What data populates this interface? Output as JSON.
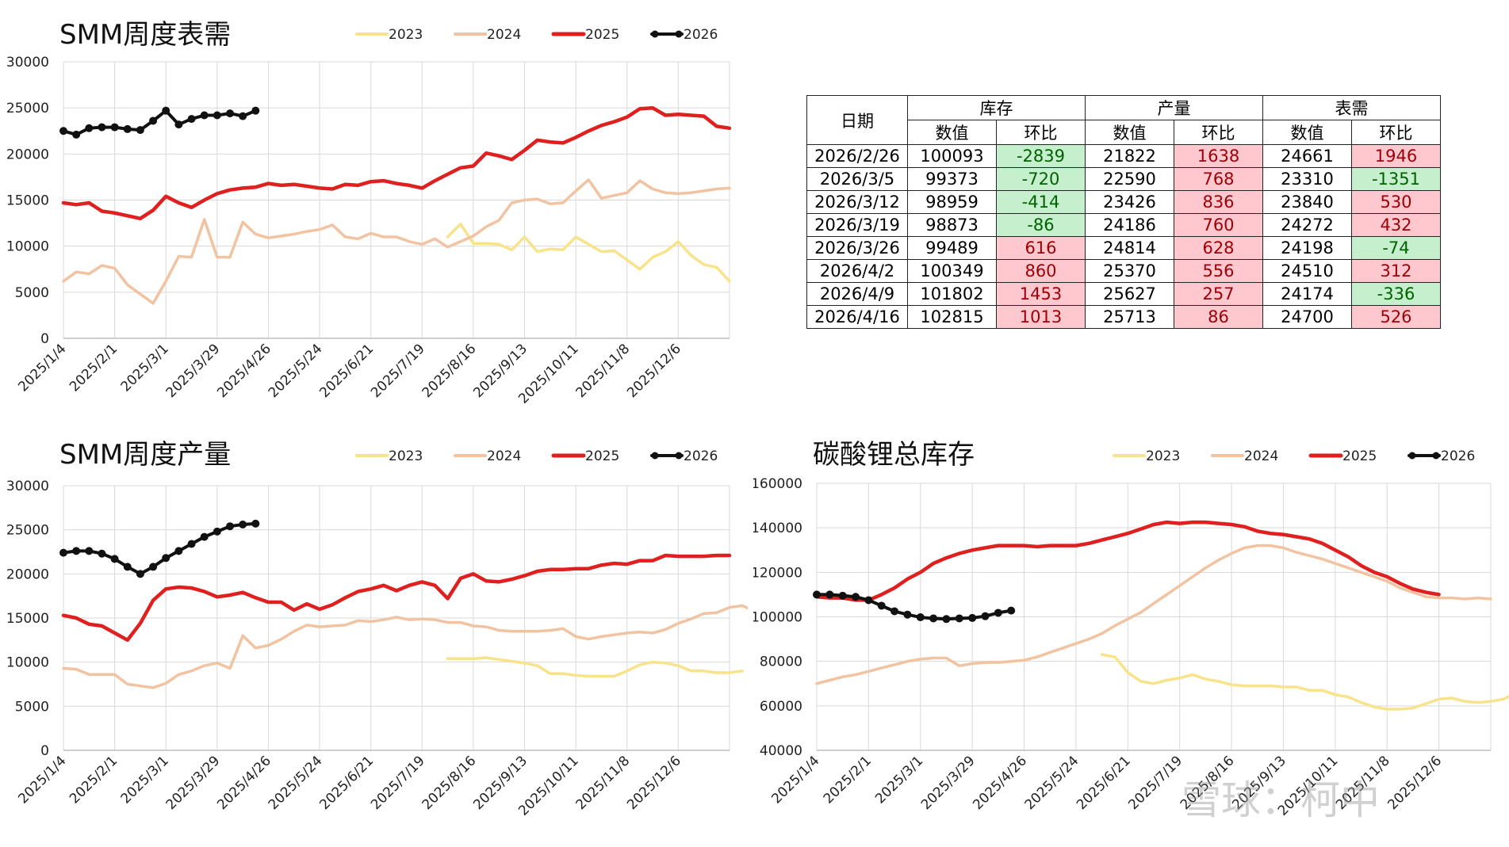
{
  "colors": {
    "s2023": "#f9e38a",
    "s2024": "#f2c3a0",
    "s2025": "#e01f1f",
    "s2026": "#111111",
    "grid": "#d9d9d9",
    "pos": "#ffc7ce",
    "neg": "#c6efce"
  },
  "chart_data": [
    {
      "type": "line",
      "title": "SMM周度表需",
      "ylim": [
        0,
        30000
      ],
      "yticks": [
        0,
        5000,
        10000,
        15000,
        20000,
        25000,
        30000
      ],
      "xticks": [
        "2025/1/4",
        "2025/2/1",
        "2025/3/1",
        "2025/3/29",
        "2025/4/26",
        "2025/5/24",
        "2025/6/21",
        "2025/7/19",
        "2025/8/16",
        "2025/9/13",
        "2025/10/11",
        "2025/11/8",
        "2025/12/6"
      ],
      "series": [
        {
          "name": "2023",
          "start": 30,
          "values": [
            11000,
            12400,
            10300,
            10300,
            10200,
            9600,
            11000,
            9400,
            9700,
            9600,
            11000,
            10200,
            9400,
            9500,
            8500,
            7500,
            8800,
            9400,
            10500,
            9000,
            8000,
            7700,
            6200
          ]
        },
        {
          "name": "2024",
          "start": 0,
          "values": [
            6200,
            7200,
            7000,
            7900,
            7600,
            5800,
            4800,
            3800,
            6200,
            8900,
            8800,
            12900,
            8800,
            8800,
            12600,
            11300,
            10900,
            11100,
            11300,
            11600,
            11800,
            12300,
            11000,
            10800,
            11400,
            11000,
            11000,
            10500,
            10200,
            10800,
            9900,
            10500,
            11100,
            12100,
            12800,
            14700,
            15000,
            15100,
            14600,
            14700,
            16000,
            17200,
            15200,
            15500,
            15800,
            17100,
            16200,
            15800,
            15700,
            15800,
            16000,
            16200,
            16300
          ]
        },
        {
          "name": "2025",
          "start": 0,
          "values": [
            14700,
            14500,
            14700,
            13800,
            13600,
            13300,
            13000,
            13900,
            15400,
            14700,
            14200,
            15000,
            15700,
            16100,
            16300,
            16400,
            16800,
            16600,
            16700,
            16500,
            16300,
            16200,
            16700,
            16600,
            17000,
            17100,
            16800,
            16600,
            16300,
            17100,
            17800,
            18500,
            18700,
            20100,
            19800,
            19400,
            20400,
            21500,
            21300,
            21200,
            21800,
            22500,
            23100,
            23500,
            24000,
            24900,
            25000,
            24200,
            24300,
            24200,
            24100,
            23000,
            22800
          ]
        },
        {
          "name": "2026",
          "start": 0,
          "values": [
            22500,
            22100,
            22800,
            22900,
            22900,
            22700,
            22600,
            23600,
            24700,
            23200,
            23800,
            24200,
            24200,
            24400,
            24100,
            24700
          ]
        }
      ]
    },
    {
      "type": "line",
      "title": "SMM周度产量",
      "ylim": [
        0,
        30000
      ],
      "yticks": [
        0,
        5000,
        10000,
        15000,
        20000,
        25000,
        30000
      ],
      "xticks": [
        "2025/1/4",
        "2025/2/1",
        "2025/3/1",
        "2025/3/29",
        "2025/4/26",
        "2025/5/24",
        "2025/6/21",
        "2025/7/19",
        "2025/8/16",
        "2025/9/13",
        "2025/10/11",
        "2025/11/8",
        "2025/12/6"
      ],
      "series": [
        {
          "name": "2023",
          "start": 30,
          "values": [
            10400,
            10400,
            10400,
            10500,
            10300,
            10100,
            9900,
            9600,
            8700,
            8700,
            8500,
            8400,
            8400,
            8400,
            9000,
            9700,
            10000,
            9900,
            9600,
            9000,
            9000,
            8800,
            8800,
            9000
          ]
        },
        {
          "name": "2024",
          "start": 0,
          "values": [
            9300,
            9200,
            8600,
            8600,
            8600,
            7500,
            7300,
            7100,
            7600,
            8600,
            9000,
            9600,
            9900,
            9300,
            13000,
            11600,
            11900,
            12600,
            13500,
            14200,
            14000,
            14100,
            14200,
            14700,
            14600,
            14800,
            15100,
            14800,
            14900,
            14800,
            14500,
            14500,
            14100,
            14000,
            13600,
            13500,
            13500,
            13500,
            13600,
            13800,
            12900,
            12600,
            12900,
            13100,
            13300,
            13400,
            13300,
            13700,
            14400,
            14900,
            15500,
            15600,
            16200,
            16400,
            15700
          ]
        },
        {
          "name": "2025",
          "start": 0,
          "values": [
            15300,
            15000,
            14300,
            14100,
            13300,
            12500,
            14400,
            17000,
            18300,
            18500,
            18400,
            18000,
            17400,
            17600,
            17900,
            17300,
            16800,
            16800,
            15900,
            16600,
            16000,
            16500,
            17300,
            18000,
            18300,
            18700,
            18100,
            18700,
            19100,
            18700,
            17200,
            19500,
            20000,
            19200,
            19100,
            19400,
            19800,
            20300,
            20500,
            20500,
            20600,
            20600,
            21000,
            21200,
            21100,
            21500,
            21500,
            22100,
            22000,
            22000,
            22000,
            22100,
            22100
          ]
        },
        {
          "name": "2026",
          "start": 0,
          "values": [
            22400,
            22600,
            22600,
            22300,
            21700,
            20800,
            20000,
            20800,
            21800,
            22600,
            23400,
            24200,
            24800,
            25400,
            25600,
            25700
          ]
        }
      ]
    },
    {
      "type": "line",
      "title": "碳酸锂总库存",
      "ylim": [
        40000,
        160000
      ],
      "yticks": [
        40000,
        60000,
        80000,
        100000,
        120000,
        140000,
        160000
      ],
      "xticks": [
        "2025/1/4",
        "2025/2/1",
        "2025/3/1",
        "2025/3/29",
        "2025/4/26",
        "2025/5/24",
        "2025/6/21",
        "2025/7/19",
        "2025/8/16",
        "2025/9/13",
        "2025/10/11",
        "2025/11/8",
        "2025/12/6"
      ],
      "series": [
        {
          "name": "2023",
          "start": 22,
          "values": [
            83000,
            82000,
            75000,
            71000,
            70000,
            71500,
            72500,
            74000,
            72000,
            71000,
            69500,
            69000,
            69000,
            69000,
            68500,
            68500,
            67000,
            67000,
            65000,
            64000,
            61500,
            59500,
            58500,
            58500,
            59000,
            61000,
            63000,
            63500,
            62000,
            61500,
            62000,
            63000,
            66000
          ]
        },
        {
          "name": "2024",
          "start": 0,
          "values": [
            70000,
            71500,
            73000,
            74000,
            75500,
            77000,
            78500,
            80000,
            81000,
            81500,
            81500,
            78000,
            79000,
            79500,
            79500,
            80000,
            80500,
            82000,
            84000,
            86000,
            88000,
            90000,
            92500,
            96000,
            99000,
            102000,
            106000,
            110000,
            114000,
            118000,
            122000,
            125500,
            128500,
            131000,
            132000,
            132000,
            131000,
            129000,
            127500,
            126000,
            124000,
            122000,
            120000,
            118000,
            116000,
            113000,
            111000,
            109000,
            108500,
            108500,
            108000,
            108500,
            108000
          ]
        },
        {
          "name": "2025",
          "start": 0,
          "values": [
            109000,
            108500,
            108500,
            107500,
            107500,
            110000,
            113000,
            117000,
            120000,
            124000,
            126500,
            128500,
            130000,
            131000,
            132000,
            132000,
            132000,
            131500,
            132000,
            132000,
            132000,
            133000,
            134500,
            136000,
            137500,
            139500,
            141500,
            142500,
            142000,
            142500,
            142500,
            142000,
            141500,
            140500,
            138500,
            137500,
            137000,
            136000,
            135000,
            133000,
            130000,
            127000,
            123000,
            120000,
            118000,
            115000,
            112500,
            111000,
            110000
          ]
        },
        {
          "name": "2026",
          "start": 0,
          "values": [
            110000,
            110000,
            109500,
            109000,
            107500,
            105000,
            102500,
            101000,
            99800,
            99300,
            99000,
            99300,
            99500,
            100300,
            101800,
            102800
          ]
        }
      ]
    }
  ],
  "legend": [
    "2023",
    "2024",
    "2025",
    "2026"
  ],
  "table": {
    "headers": {
      "date": "日期",
      "inventory": "库存",
      "production": "产量",
      "demand": "表需",
      "value": "数值",
      "change": "环比"
    },
    "rows": [
      {
        "date": "2026/2/26",
        "inv": "100093",
        "inv_chg": "-2839",
        "prod": "21822",
        "prod_chg": "1638",
        "dem": "24661",
        "dem_chg": "1946"
      },
      {
        "date": "2026/3/5",
        "inv": "99373",
        "inv_chg": "-720",
        "prod": "22590",
        "prod_chg": "768",
        "dem": "23310",
        "dem_chg": "-1351"
      },
      {
        "date": "2026/3/12",
        "inv": "98959",
        "inv_chg": "-414",
        "prod": "23426",
        "prod_chg": "836",
        "dem": "23840",
        "dem_chg": "530"
      },
      {
        "date": "2026/3/19",
        "inv": "98873",
        "inv_chg": "-86",
        "prod": "24186",
        "prod_chg": "760",
        "dem": "24272",
        "dem_chg": "432"
      },
      {
        "date": "2026/3/26",
        "inv": "99489",
        "inv_chg": "616",
        "prod": "24814",
        "prod_chg": "628",
        "dem": "24198",
        "dem_chg": "-74"
      },
      {
        "date": "2026/4/2",
        "inv": "100349",
        "inv_chg": "860",
        "prod": "25370",
        "prod_chg": "556",
        "dem": "24510",
        "dem_chg": "312"
      },
      {
        "date": "2026/4/9",
        "inv": "101802",
        "inv_chg": "1453",
        "prod": "25627",
        "prod_chg": "257",
        "dem": "24174",
        "dem_chg": "-336"
      },
      {
        "date": "2026/4/16",
        "inv": "102815",
        "inv_chg": "1013",
        "prod": "25713",
        "prod_chg": "86",
        "dem": "24700",
        "dem_chg": "526"
      }
    ]
  },
  "watermark": "雪球：柯中"
}
